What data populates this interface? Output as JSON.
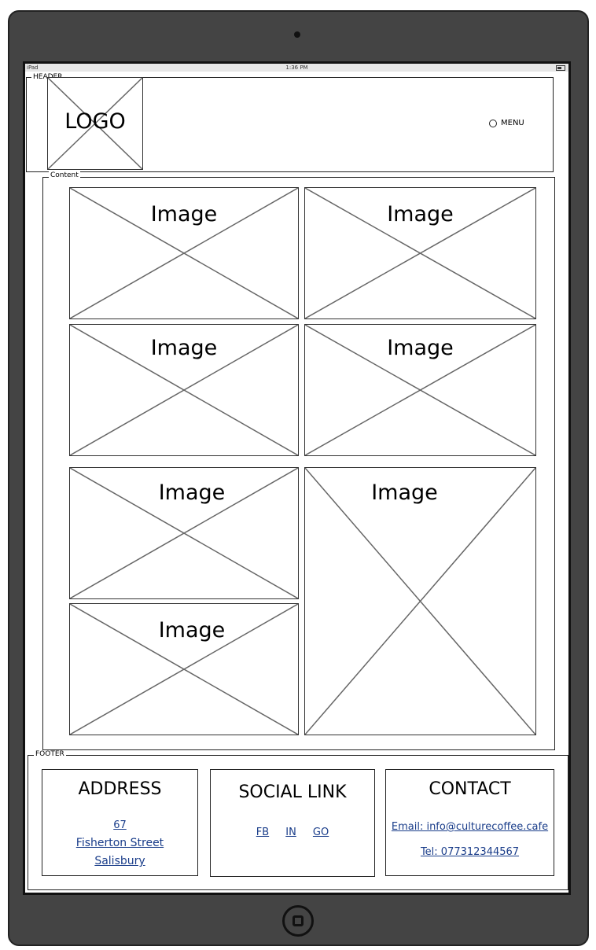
{
  "device": {
    "status_carrier": "iPad",
    "status_time": "1:36 PM"
  },
  "header": {
    "group_label": "HEADER",
    "logo_label": "LOGO",
    "menu_label": "MENU"
  },
  "content": {
    "group_label": "Content",
    "image_label": "Image"
  },
  "footer": {
    "group_label": "FOOTER",
    "address": {
      "title": "ADDRESS",
      "line1": "67",
      "line2": "Fisherton Street",
      "line3": "Salisbury"
    },
    "social": {
      "title": "SOCIAL LINK",
      "links": [
        "FB",
        "IN",
        "GO"
      ]
    },
    "contact": {
      "title": "CONTACT",
      "email": "Email: info@culturecoffee.cafe",
      "tel": "Tel: 077312344567"
    }
  },
  "colors": {
    "device": "#444444",
    "link": "#1a3d8a"
  }
}
